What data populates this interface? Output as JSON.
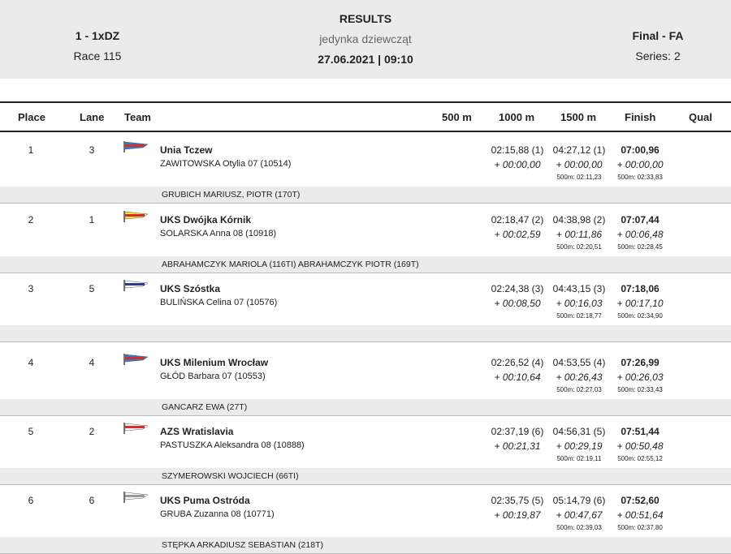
{
  "header": {
    "event_code": "1 - 1xDZ",
    "race": "Race 115",
    "title": "RESULTS",
    "subtitle": "jedynka dziewcząt",
    "datetime": "27.06.2021 | 09:10",
    "phase": "Final - FA",
    "series": "Series: 2"
  },
  "columns": {
    "place": "Place",
    "lane": "Lane",
    "team": "Team",
    "m500": "500 m",
    "m1000": "1000 m",
    "m1500": "1500 m",
    "finish": "Finish",
    "qual": "Qual"
  },
  "rows": [
    {
      "place": "1",
      "lane": "3",
      "club": "Unia Tczew",
      "athlete": "ZAWITOWSKA  Otylia 07 (10514)",
      "t1000": "02:15,88 (1)",
      "d1000": "+ 00:00,00",
      "t1500": "04:27,12 (1)",
      "d1500": "+ 00:00,00",
      "s1500": "500m: 02:11,23",
      "fin": "07:00,96",
      "dfin": "+ 00:00,00",
      "sfin": "500m: 02:33,83",
      "coach": "GRUBICH MARIUSZ, PIOTR (170T)",
      "flag": {
        "c1": "#2a7fc8",
        "c2": "#d92b2b"
      }
    },
    {
      "place": "2",
      "lane": "1",
      "club": "UKS Dwójka Kórnik",
      "athlete": "SOLARSKA  Anna 08 (10918)",
      "t1000": "02:18,47 (2)",
      "d1000": "+ 00:02,59",
      "t1500": "04:38,98 (2)",
      "d1500": "+ 00:11,86",
      "s1500": "500m: 02:20,51",
      "fin": "07:07,44",
      "dfin": "+ 00:06,48",
      "sfin": "500m: 02:28,45",
      "coach": "ABRAHAMCZYK MARIOLA (116TI) ABRAHAMCZYK PIOTR (169T)",
      "flag": {
        "c1": "#f2e640",
        "c2": "#d92b2b"
      }
    },
    {
      "place": "3",
      "lane": "5",
      "club": "UKS Szóstka",
      "athlete": "BULIŃSKA  Celina 07 (10576)",
      "t1000": "02:24,38 (3)",
      "d1000": "+ 00:08,50",
      "t1500": "04:43,15 (3)",
      "d1500": "+ 00:16,03",
      "s1500": "500m: 02:18,77",
      "fin": "07:18,06",
      "dfin": "+ 00:17,10",
      "sfin": "500m: 02:34,90",
      "coach": "",
      "flag": {
        "c1": "#ffffff",
        "c2": "#2a3a8c"
      }
    },
    {
      "place": "4",
      "lane": "4",
      "club": "UKS Milenium Wrocław",
      "athlete": "GŁÓD  Barbara 07 (10553)",
      "t1000": "02:26,52 (4)",
      "d1000": "+ 00:10,64",
      "t1500": "04:53,55 (4)",
      "d1500": "+ 00:26,43",
      "s1500": "500m: 02:27,03",
      "fin": "07:26,99",
      "dfin": "+ 00:26,03",
      "sfin": "500m: 02:33,43",
      "coach": "GANCARZ EWA (27T)",
      "flag": {
        "c1": "#2a7fc8",
        "c2": "#d92b2b"
      }
    },
    {
      "place": "5",
      "lane": "2",
      "club": "AZS Wratislavia",
      "athlete": "PASTUSZKA  Aleksandra 08 (10888)",
      "t1000": "02:37,19 (6)",
      "d1000": "+ 00:21,31",
      "t1500": "04:56,31 (5)",
      "d1500": "+ 00:29,19",
      "s1500": "500m: 02:19,11",
      "fin": "07:51,44",
      "dfin": "+ 00:50,48",
      "sfin": "500m: 02:55,12",
      "coach": "SZYMEROWSKI WOJCIECH (66TI)",
      "flag": {
        "c1": "#ffffff",
        "c2": "#d92b2b"
      }
    },
    {
      "place": "6",
      "lane": "6",
      "club": "UKS Puma Ostróda",
      "athlete": "GRUBA  Zuzanna 08 (10771)",
      "t1000": "02:35,75 (5)",
      "d1000": "+ 00:19,87",
      "t1500": "05:14,79 (6)",
      "d1500": "+ 00:47,67",
      "s1500": "500m: 02:39,03",
      "fin": "07:52,60",
      "dfin": "+ 00:51,64",
      "sfin": "500m: 02:37,80",
      "coach": "STĘPKA ARKADIUSZ SEBASTIAN (218T)",
      "flag": {
        "c1": "#ffffff",
        "c2": "#999999"
      }
    }
  ]
}
